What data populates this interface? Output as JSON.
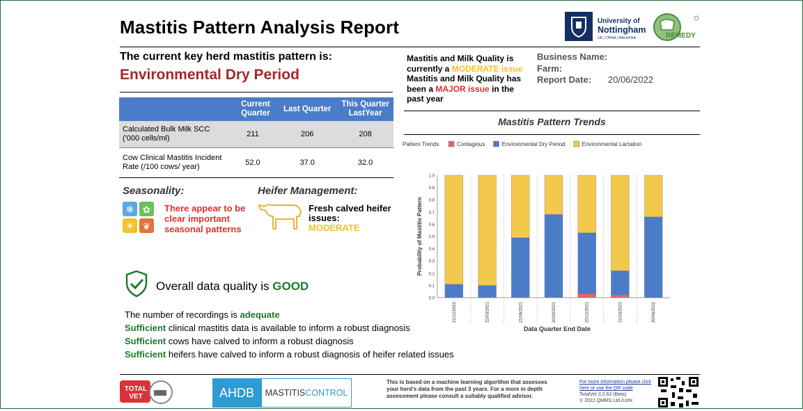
{
  "header": {
    "title": "Mastitis Pattern Analysis Report",
    "university_line1": "University of",
    "university_line2": "Nottingham",
    "university_sub": "UK | CHINA | MALAYSIA",
    "remedy_logo": "REMEDY"
  },
  "key_pattern": {
    "heading": "The current key herd mastitis pattern is:",
    "value": "Environmental Dry Period"
  },
  "milk_quality": {
    "line1_prefix": "Mastitis and Milk Quality is currently a",
    "line1_status": "MODERATE issue",
    "line2_prefix": "Mastitis and Milk Quality has been a",
    "line2_status": "MAJOR issue",
    "line2_suffix": "in the past year"
  },
  "business": {
    "name_label": "Business Name:",
    "farm_label": "Farm:",
    "date_label": "Report Date:",
    "date_value": "20/06/2022"
  },
  "table": {
    "headers": [
      "",
      "Current Quarter",
      "Last Quarter",
      "This Quarter LastYear"
    ],
    "rows": [
      {
        "label": "Calculated Bulk Milk SCC ('000 cells/ml)",
        "values": [
          "211",
          "206",
          "208"
        ]
      },
      {
        "label": "Cow Clinical Mastitis Incident Rate (/100 cows/ year)",
        "values": [
          "52.0",
          "37.0",
          "32.0"
        ]
      }
    ]
  },
  "seasonality": {
    "heading": "Seasonality:",
    "text": "There appear to be clear important seasonal patterns"
  },
  "heifer": {
    "heading": "Heifer Management:",
    "text": "Fresh calved heifer issues:",
    "status": "MODERATE"
  },
  "data_quality": {
    "prefix": "Overall data quality is",
    "status": "GOOD",
    "rec_prefix": "The number of recordings is",
    "rec_status": "adequate",
    "items": [
      {
        "bold": "Sufficient",
        "text": "clinical mastitis data is available to inform a robust diagnosis"
      },
      {
        "bold": "Sufficient",
        "text": "cows have calved to inform a robust diagnosis"
      },
      {
        "bold": "Sufficient",
        "text": "heifers have calved to inform a robust diagnosis of heifer related issues"
      }
    ]
  },
  "chart_title": "Mastitis Pattern Trends",
  "chart_data": {
    "type": "bar",
    "stacked": true,
    "legend_title": "Pattern Trends",
    "legend_position": "top-left",
    "categories": [
      "21/12/2020",
      "22/03/2021",
      "21/06/2021",
      "20/09/2021",
      "20/12/2021",
      "21/03/2022",
      "20/06/2022"
    ],
    "series": [
      {
        "name": "Contagious",
        "color": "#e06666",
        "values": [
          0.0,
          0.0,
          0.0,
          0.0,
          0.03,
          0.02,
          0.0
        ]
      },
      {
        "name": "Environmental Dry Period",
        "color": "#4a7cc8",
        "values": [
          0.11,
          0.1,
          0.49,
          0.68,
          0.5,
          0.2,
          0.66
        ]
      },
      {
        "name": "Environmental Lactation",
        "color": "#f2c94c",
        "values": [
          0.89,
          0.9,
          0.51,
          0.32,
          0.47,
          0.78,
          0.34
        ]
      }
    ],
    "ylim": [
      0,
      1
    ],
    "yticks": [
      "0.0",
      "0.1",
      "0.2",
      "0.3",
      "0.4",
      "0.5",
      "0.6",
      "0.7",
      "0.8",
      "0.9",
      "1.0"
    ],
    "ylabel": "Probability of Mastitis Pattern",
    "xlabel": "Data Quarter End Date",
    "grid": false
  },
  "footer": {
    "totalvet": "TOTAL VET",
    "ahdb": "AHDB",
    "mastitis_a": "MASTITIS",
    "mastitis_b": "CONTROL",
    "note": "This is based on a machine learning algorithm that assesses your herd's data from the past 3 years. For a more in depth assessment please consult a suitably qualified advisor.",
    "link1": "For more information please click",
    "link2": "here or use the QR code",
    "version": "TotalVet 3.2.63 (Beta)",
    "copyright": "© 2022 QMMS Ltd./UoN"
  },
  "colors": {
    "accent": "#4a7cc8",
    "pattern": "#a3282a",
    "good": "#1a7a2a",
    "moderate": "#f2c02b",
    "major": "#e0312d"
  }
}
